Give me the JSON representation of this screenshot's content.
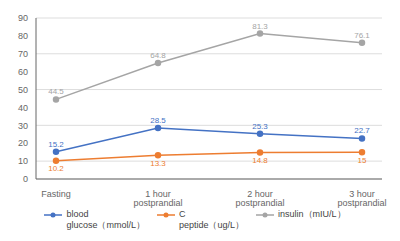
{
  "chart_data": {
    "type": "line",
    "categories": [
      "Fasting",
      "1 hour postprandial",
      "2 hour postprandial",
      "3 hour postprandial"
    ],
    "series": [
      {
        "name": "blood\nglucose（mmol/L）",
        "color": "#4472C4",
        "marker": "circle",
        "values": [
          15.2,
          28.5,
          25.3,
          22.7
        ]
      },
      {
        "name": "C\npeptide（ug/L）",
        "color": "#ED7D31",
        "marker": "circle",
        "values": [
          10.2,
          13.3,
          14.8,
          15.0
        ]
      },
      {
        "name": "insulin（mIU/L）",
        "color": "#A5A5A5",
        "marker": "circle",
        "values": [
          44.5,
          64.8,
          81.3,
          76.1
        ]
      }
    ],
    "ylim": [
      0,
      90
    ],
    "yticks": [
      0,
      10,
      20,
      30,
      40,
      50,
      60,
      70,
      80,
      90
    ],
    "grid": true,
    "legend": "bottom",
    "data_labels": true
  }
}
